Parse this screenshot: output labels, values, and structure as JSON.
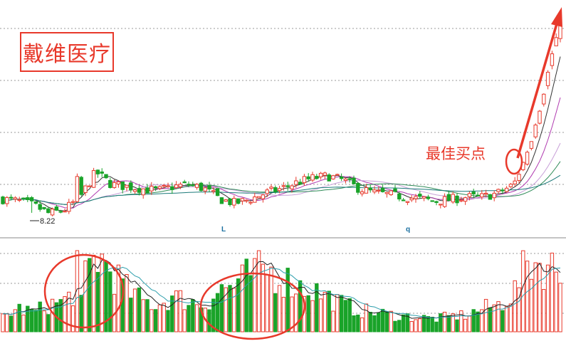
{
  "title": "戴维医疗",
  "annotation": "最佳买点",
  "low_price_label": "8.22",
  "markers": [
    "L",
    "q"
  ],
  "colors": {
    "up": "#e8392b",
    "down": "#19a329",
    "highlight": "#e8392b",
    "ma_short": "#333333",
    "ma_mid": "#c8a0d8",
    "ma_long": "#2e8b57",
    "ma_ext": "#b03ab0",
    "vol_ma1": "#222222",
    "vol_ma2": "#2a9dab",
    "grid": "#999999"
  },
  "chart_data": {
    "type": "candlestick",
    "title": "戴维医疗",
    "annotations": [
      "最佳买点",
      "8.22"
    ],
    "price_range_note": "price axis unlabeled",
    "price_min_label": 8.22,
    "series": [
      {
        "name": "price_trend",
        "values": [
          9.1,
          9.0,
          8.8,
          8.4,
          8.6,
          9.2,
          10.4,
          9.8,
          9.7,
          9.6,
          9.5,
          9.7,
          9.8,
          9.6,
          9.1,
          8.9,
          9.1,
          9.4,
          9.6,
          9.9,
          10.1,
          10.2,
          10.0,
          9.6,
          9.4,
          9.3,
          9.2,
          9.1,
          9.0,
          9.1,
          9.2,
          9.2,
          9.4,
          9.8,
          11.5,
          14.5,
          17.6
        ]
      }
    ],
    "volume_trend": [
      20,
      30,
      25,
      35,
      40,
      60,
      100,
      80,
      55,
      40,
      35,
      45,
      40,
      35,
      55,
      60,
      75,
      80,
      70,
      60,
      55,
      45,
      35,
      28,
      25,
      22,
      20,
      18,
      17,
      20,
      22,
      30,
      35,
      50,
      95,
      85,
      80
    ]
  }
}
